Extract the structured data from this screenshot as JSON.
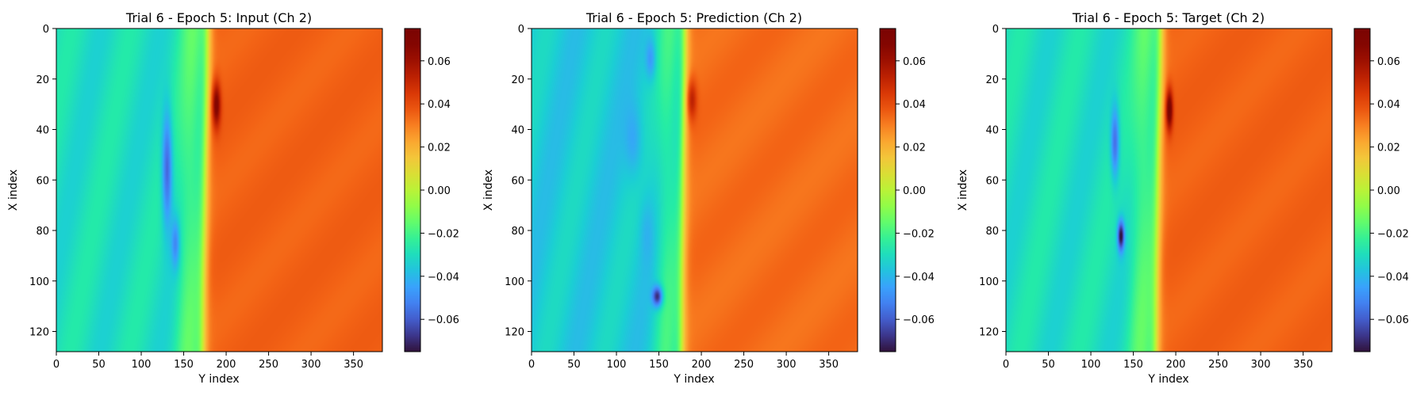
{
  "chart_data": [
    {
      "type": "heatmap",
      "title": "Trial 6 - Epoch 5: Input (Ch 2)",
      "xlabel": "Y index",
      "ylabel": "X index",
      "xlim": [
        0,
        384
      ],
      "ylim": [
        128,
        0
      ],
      "xticks": [
        0,
        50,
        100,
        150,
        200,
        250,
        300,
        350
      ],
      "yticks": [
        0,
        20,
        40,
        60,
        80,
        100,
        120
      ],
      "colormap": "turbo",
      "colorbar": {
        "vmin": -0.075,
        "vmax": 0.075,
        "ticks": [
          "0.06",
          "0.04",
          "0.02",
          "0.00",
          "−0.02",
          "−0.04",
          "−0.06"
        ],
        "tick_values": [
          0.06,
          0.04,
          0.02,
          0.0,
          -0.02,
          -0.04,
          -0.06
        ]
      },
      "field": {
        "background_left": -0.03,
        "background_right": 0.035,
        "front_y_at_x0": 178,
        "front_y_at_x128": 172,
        "features": [
          {
            "kind": "trough",
            "x": 55,
            "y": 130,
            "value": -0.062,
            "sx": 22,
            "sy": 6
          },
          {
            "kind": "trough",
            "x": 85,
            "y": 140,
            "value": -0.05,
            "sx": 10,
            "sy": 5
          },
          {
            "kind": "peak",
            "x": 30,
            "y": 188,
            "value": 0.07,
            "sx": 9,
            "sy": 5
          }
        ]
      }
    },
    {
      "type": "heatmap",
      "title": "Trial 6 - Epoch 5: Prediction (Ch 2)",
      "xlabel": "Y index",
      "ylabel": "X index",
      "xlim": [
        0,
        384
      ],
      "ylim": [
        128,
        0
      ],
      "xticks": [
        0,
        50,
        100,
        150,
        200,
        250,
        300,
        350
      ],
      "yticks": [
        0,
        20,
        40,
        60,
        80,
        100,
        120
      ],
      "colormap": "turbo",
      "colorbar": {
        "vmin": -0.075,
        "vmax": 0.075,
        "ticks": [
          "0.06",
          "0.04",
          "0.02",
          "0.00",
          "−0.02",
          "−0.04",
          "−0.06"
        ],
        "tick_values": [
          0.06,
          0.04,
          0.02,
          0.0,
          -0.02,
          -0.04,
          -0.06
        ]
      },
      "field": {
        "background_left": -0.035,
        "background_right": 0.033,
        "front_y_at_x0": 180,
        "front_y_at_x128": 176,
        "features": [
          {
            "kind": "trough",
            "x": 12,
            "y": 140,
            "value": -0.05,
            "sx": 8,
            "sy": 6
          },
          {
            "kind": "trough",
            "x": 45,
            "y": 120,
            "value": -0.045,
            "sx": 14,
            "sy": 10
          },
          {
            "kind": "trough",
            "x": 80,
            "y": 135,
            "value": -0.04,
            "sx": 12,
            "sy": 8
          },
          {
            "kind": "trough",
            "x": 106,
            "y": 148,
            "value": -0.075,
            "sx": 4,
            "sy": 6
          },
          {
            "kind": "peak",
            "x": 28,
            "y": 188,
            "value": 0.055,
            "sx": 8,
            "sy": 6
          }
        ]
      }
    },
    {
      "type": "heatmap",
      "title": "Trial 6 - Epoch 5: Target (Ch 2)",
      "xlabel": "Y index",
      "ylabel": "X index",
      "xlim": [
        0,
        384
      ],
      "ylim": [
        128,
        0
      ],
      "xticks": [
        0,
        50,
        100,
        150,
        200,
        250,
        300,
        350
      ],
      "yticks": [
        0,
        20,
        40,
        60,
        80,
        100,
        120
      ],
      "colormap": "turbo",
      "colorbar": {
        "vmin": -0.075,
        "vmax": 0.075,
        "ticks": [
          "0.06",
          "0.04",
          "0.02",
          "0.00",
          "−0.02",
          "−0.04",
          "−0.06"
        ],
        "tick_values": [
          0.06,
          0.04,
          0.02,
          0.0,
          -0.02,
          -0.04,
          -0.06
        ]
      },
      "field": {
        "background_left": -0.03,
        "background_right": 0.035,
        "front_y_at_x0": 182,
        "front_y_at_x128": 176,
        "features": [
          {
            "kind": "trough",
            "x": 45,
            "y": 128,
            "value": -0.06,
            "sx": 14,
            "sy": 5
          },
          {
            "kind": "trough",
            "x": 82,
            "y": 135,
            "value": -0.075,
            "sx": 6,
            "sy": 4
          },
          {
            "kind": "peak",
            "x": 32,
            "y": 192,
            "value": 0.075,
            "sx": 8,
            "sy": 4
          }
        ]
      }
    }
  ]
}
